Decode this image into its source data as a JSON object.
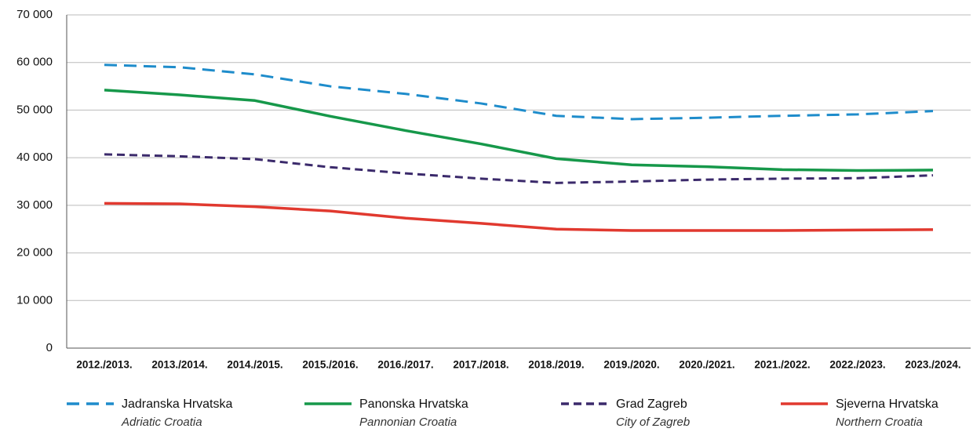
{
  "chart_data": {
    "type": "line",
    "categories": [
      "2012./2013.",
      "2013./2014.",
      "2014./2015.",
      "2015./2016.",
      "2016./2017.",
      "2017./2018.",
      "2018./2019.",
      "2019./2020.",
      "2020./2021.",
      "2021./2022.",
      "2022./2023.",
      "2023./2024."
    ],
    "series": [
      {
        "name": "Jadranska Hrvatska",
        "subtitle": "Adriatic Croatia",
        "color": "#1e8ccb",
        "dash": true,
        "values": [
          59500,
          59000,
          57500,
          55000,
          53400,
          51400,
          48800,
          48100,
          48400,
          48800,
          49100,
          49800
        ]
      },
      {
        "name": "Panonska Hrvatska",
        "subtitle": "Pannonian Croatia",
        "color": "#16984a",
        "dash": false,
        "values": [
          54200,
          53200,
          52000,
          48700,
          45700,
          42900,
          39800,
          38500,
          38100,
          37500,
          37300,
          37400
        ]
      },
      {
        "name": "Grad Zagreb",
        "subtitle": "City of Zagreb",
        "color": "#3b2a6b",
        "dash": true,
        "values": [
          40700,
          40300,
          39700,
          38000,
          36700,
          35600,
          34700,
          35000,
          35400,
          35600,
          35700,
          36300
        ]
      },
      {
        "name": "Sjeverna Hrvatska",
        "subtitle": "Northern Croatia",
        "color": "#e1392f",
        "dash": false,
        "values": [
          30400,
          30300,
          29700,
          28800,
          27300,
          26200,
          25000,
          24700,
          24700,
          24700,
          24800,
          24900
        ]
      }
    ],
    "ylim": [
      0,
      70000
    ],
    "yticks": [
      0,
      {
        "value": 10000,
        "label": "10 000"
      },
      {
        "value": 20000,
        "label": "20 000"
      },
      {
        "value": 30000,
        "label": "30 000"
      },
      {
        "value": 40000,
        "label": "40 000"
      },
      {
        "value": 50000,
        "label": "50 000"
      },
      {
        "value": 60000,
        "label": "60 000"
      },
      {
        "value": 70000,
        "label": "70 000"
      }
    ],
    "grid": true
  }
}
